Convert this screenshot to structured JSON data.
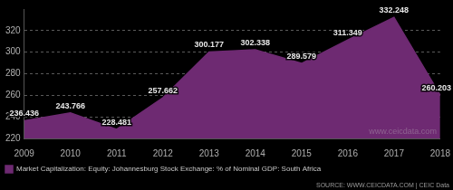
{
  "chart_data": {
    "type": "area",
    "categories": [
      "2009",
      "2010",
      "2011",
      "2012",
      "2013",
      "2014",
      "2015",
      "2016",
      "2017",
      "2018"
    ],
    "series": [
      {
        "name": "Market Capitalization: Equity: Johannesburg Stock Exchange: % of Nominal GDP: South Africa",
        "color": "#6e2a72",
        "values": [
          236.436,
          243.766,
          228.481,
          257.662,
          300.177,
          302.338,
          289.579,
          311.349,
          332.248,
          260.203
        ]
      }
    ],
    "ylim": [
      220,
      340
    ],
    "yticks": [
      220,
      240,
      260,
      280,
      300,
      320
    ],
    "grid": true,
    "legend": "bottom-left",
    "data_labels": true,
    "source": "SOURCE: WWW.CEICDATA.COM | CEIC Data",
    "watermark": "www.ceicdata.com"
  }
}
